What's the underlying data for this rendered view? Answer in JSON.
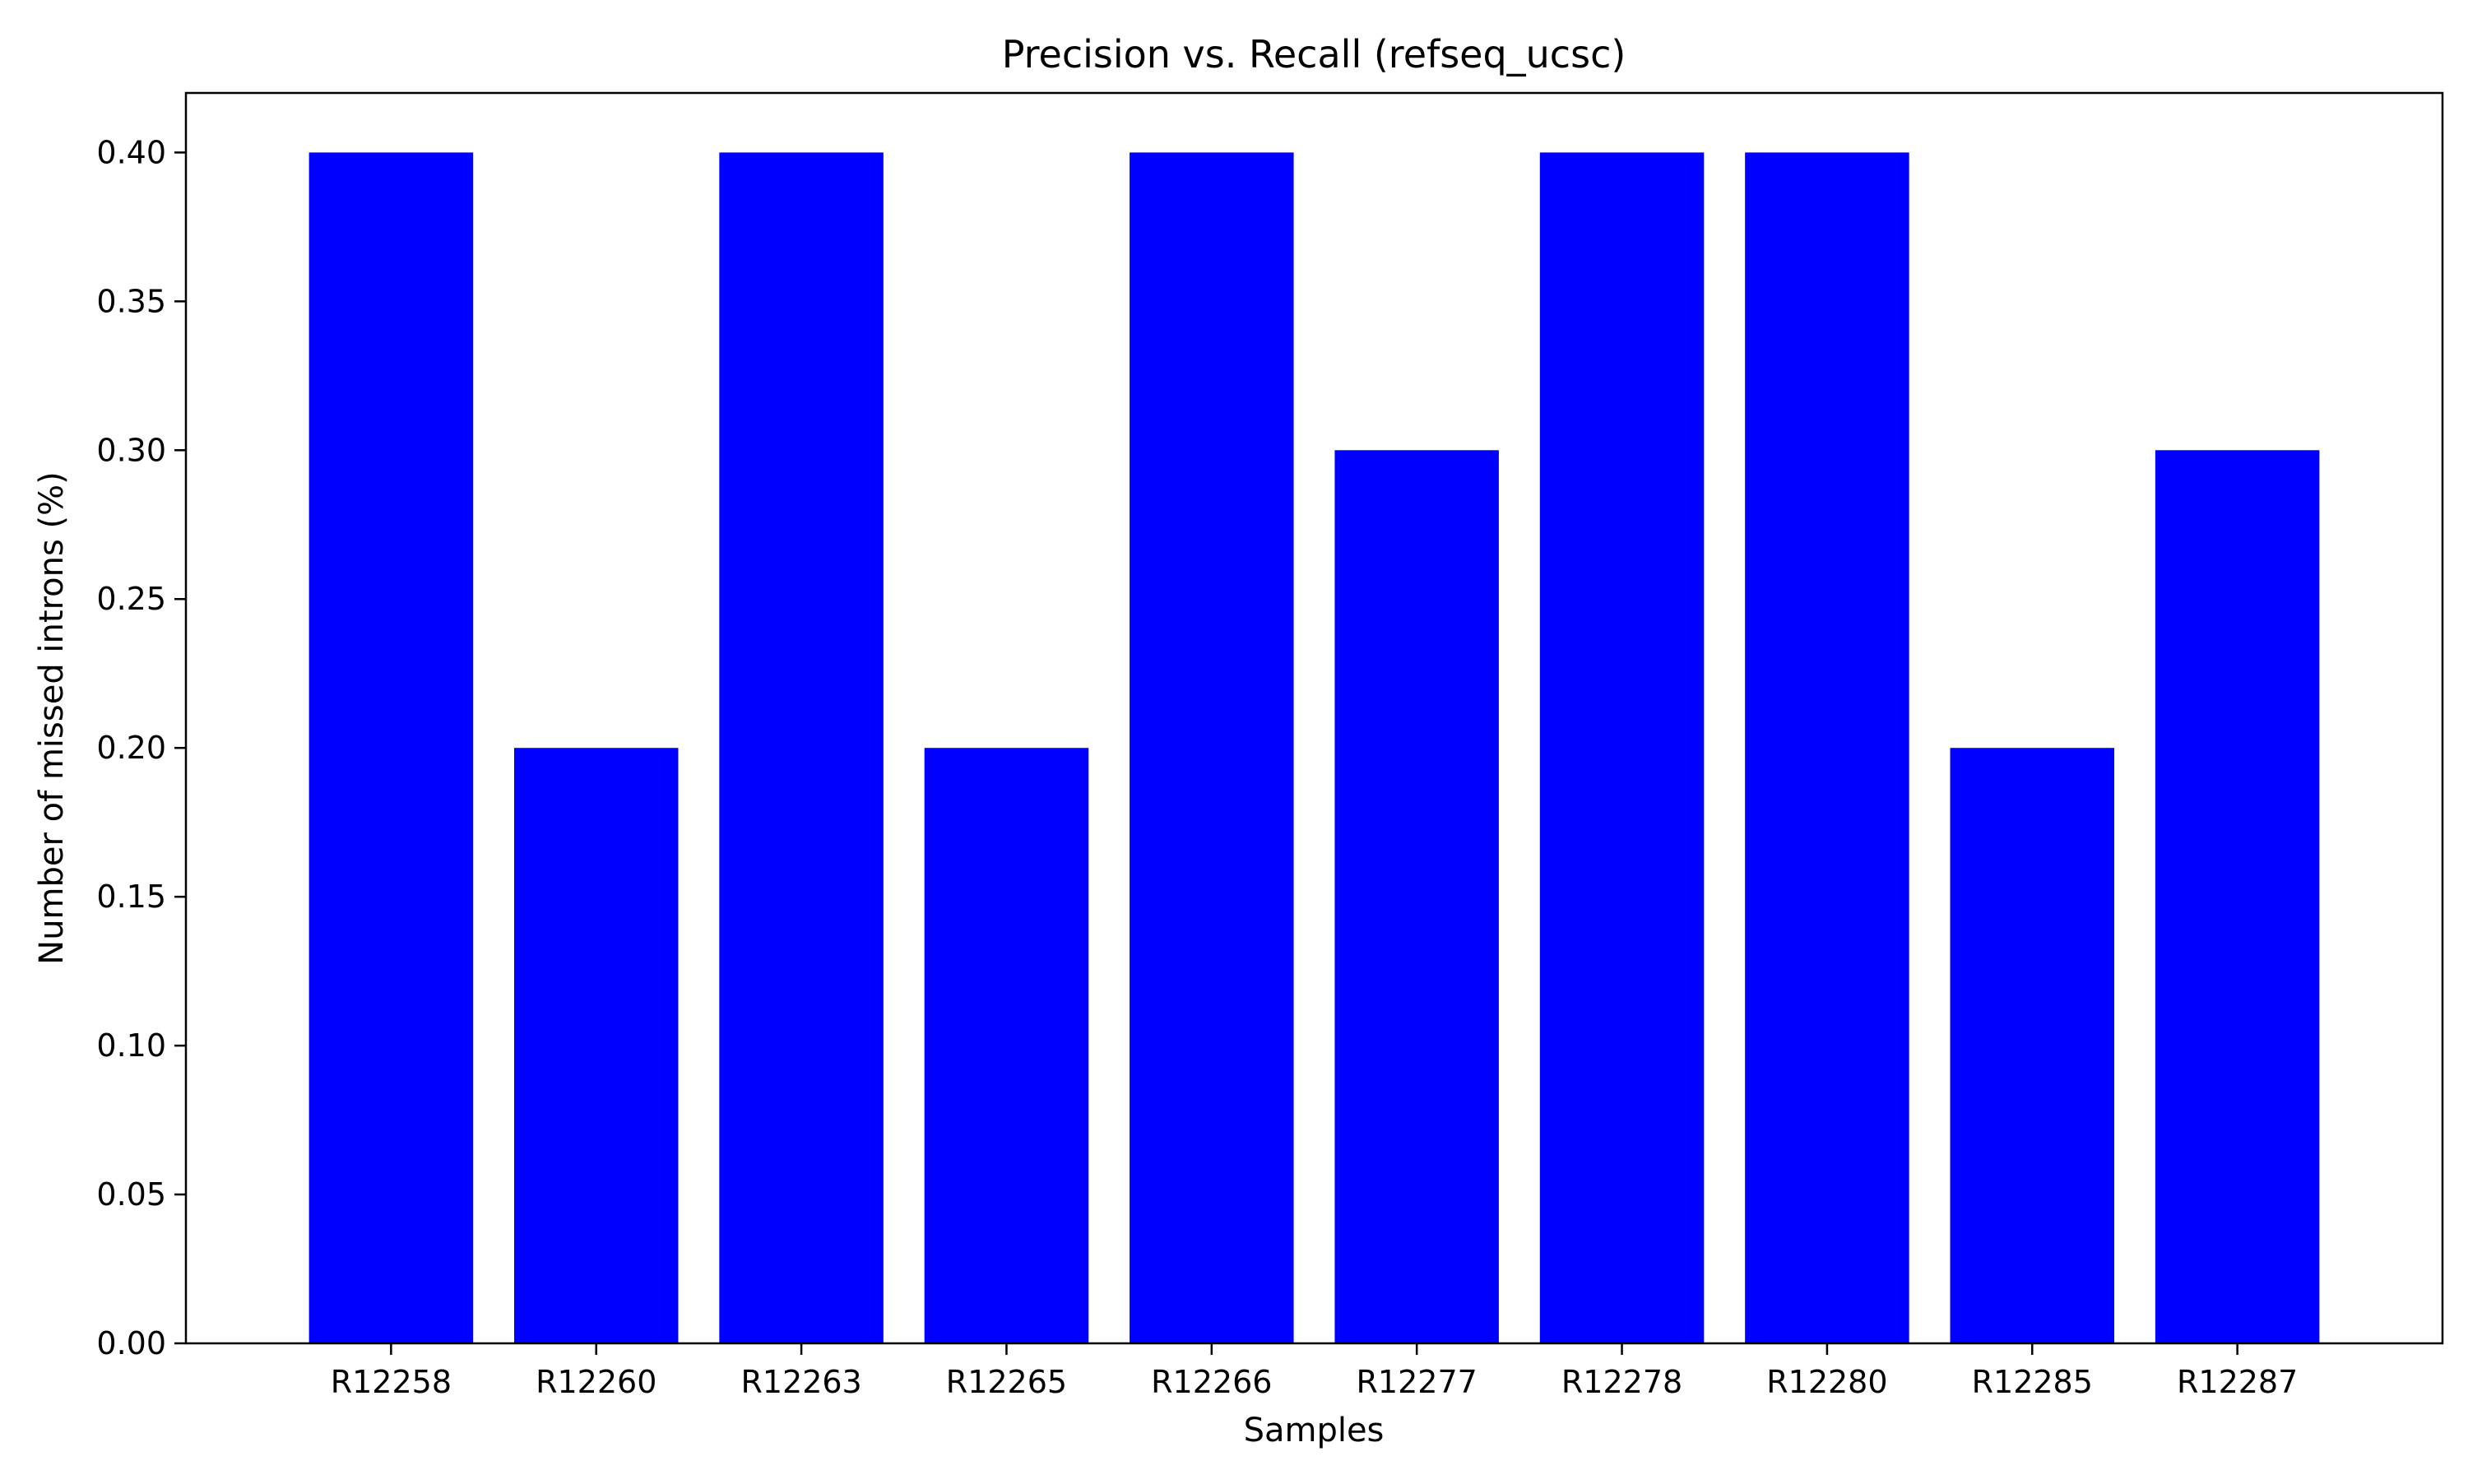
{
  "chart_data": {
    "type": "bar",
    "title": "Precision vs. Recall (refseq_ucsc)",
    "xlabel": "Samples",
    "ylabel": "Number of missed introns (%)",
    "categories": [
      "R12258",
      "R12260",
      "R12263",
      "R12265",
      "R12266",
      "R12277",
      "R12278",
      "R12280",
      "R12285",
      "R12287"
    ],
    "values": [
      0.4,
      0.2,
      0.4,
      0.2,
      0.4,
      0.3,
      0.4,
      0.4,
      0.2,
      0.3
    ],
    "ylim": [
      0,
      0.42
    ],
    "yticks": [
      "0.00",
      "0.05",
      "0.10",
      "0.15",
      "0.20",
      "0.25",
      "0.30",
      "0.35",
      "0.40"
    ],
    "grid": false,
    "legend": null,
    "bar_color": "#0000ff"
  }
}
